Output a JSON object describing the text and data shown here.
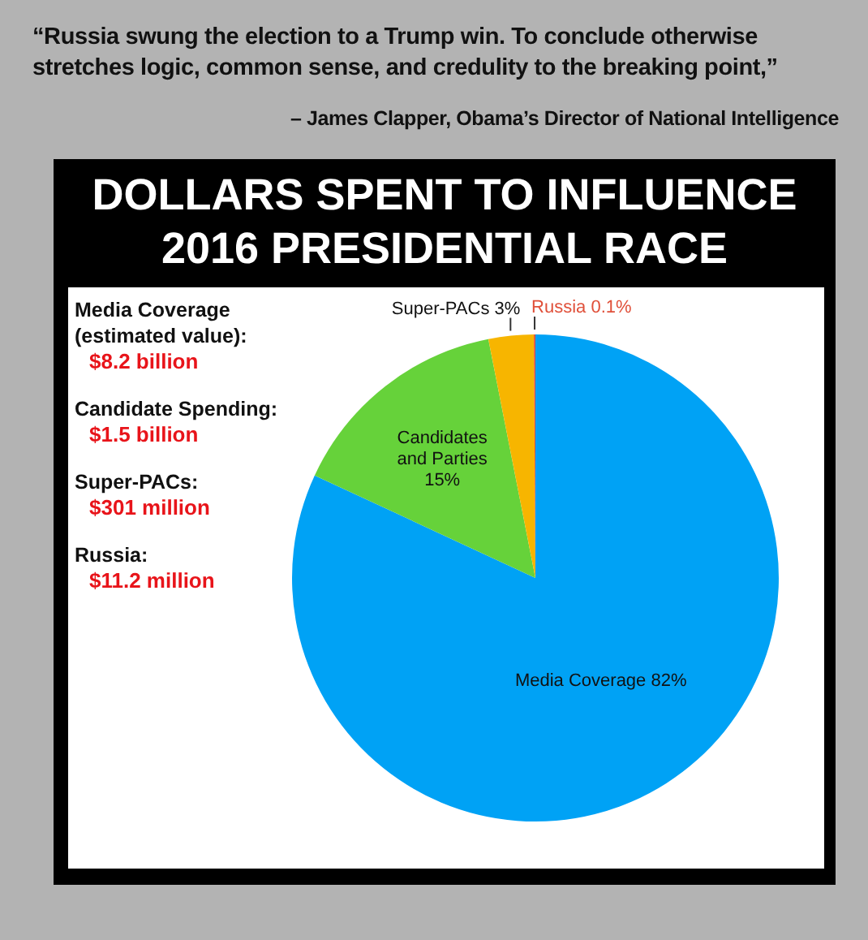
{
  "chart_data": {
    "type": "pie",
    "title": "DOLLARS SPENT TO INFLUENCE 2016 PRESIDENTIAL RACE",
    "categories": [
      "Media Coverage",
      "Candidates and Parties",
      "Super-PACs",
      "Russia"
    ],
    "values": [
      82,
      15,
      3,
      0.1
    ],
    "value_labels": [
      "82%",
      "15%",
      "3%",
      "0.1%"
    ],
    "colors": [
      "#00a2f5",
      "#66d23a",
      "#f7b500",
      "#e0503a"
    ],
    "legend": false,
    "annotations": [
      "“Russia swung the election to a Trump win. To conclude otherwise stretches logic, common sense, and credulity to the breaking point,”",
      "– James Clapper, Obama’s Director of National Intelligence",
      "Media Coverage (estimated value):",
      "$8.2 billion",
      "Candidate Spending:",
      "$1.5 billion",
      "Super-PACs:",
      "$301 million",
      "Russia:",
      "$11.2 million"
    ]
  }
}
